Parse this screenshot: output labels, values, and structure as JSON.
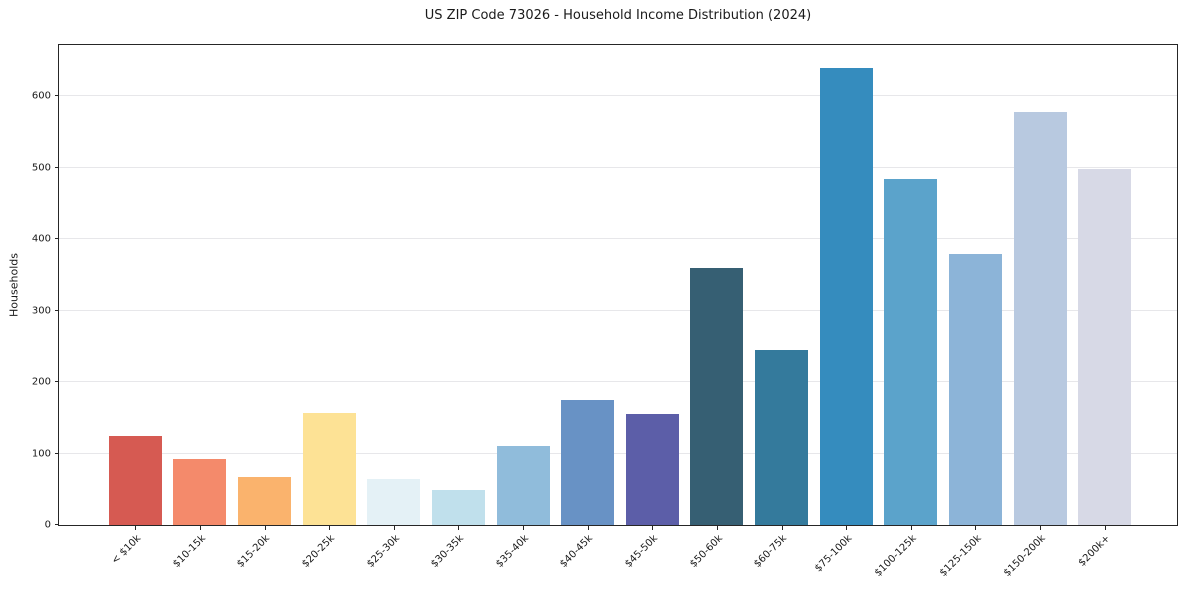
{
  "figure": {
    "title": "US ZIP Code 73026 - Household Income Distribution (2024)"
  },
  "chart_data": {
    "type": "bar",
    "title": "US ZIP Code 73026 - Household Income Distribution (2024)",
    "xlabel": "",
    "ylabel": "Households",
    "categories": [
      "< $10k",
      "$10-15k",
      "$15-20k",
      "$20-25k",
      "$25-30k",
      "$30-35k",
      "$35-40k",
      "$40-45k",
      "$45-50k",
      "$50-60k",
      "$60-75k",
      "$75-100k",
      "$100-125k",
      "$125-150k",
      "$150-200k",
      "$200k+"
    ],
    "values": [
      124,
      92,
      67,
      157,
      64,
      49,
      110,
      175,
      156,
      360,
      245,
      640,
      485,
      380,
      578,
      499
    ],
    "bar_colors": [
      "#d65a52",
      "#f48a6b",
      "#fab36d",
      "#fde295",
      "#e4f1f6",
      "#c0e0ec",
      "#90bcdb",
      "#6892c5",
      "#5c5ea8",
      "#365f73",
      "#347a9c",
      "#358cbe",
      "#5ba3cb",
      "#8cb4d8",
      "#b8c9e0",
      "#d7d9e6"
    ],
    "yticks": [
      0,
      100,
      200,
      300,
      400,
      500,
      600
    ],
    "ylim": [
      0,
      672
    ],
    "grid": "horizontal",
    "grid_color": "#e7e7ea",
    "legend": null
  }
}
